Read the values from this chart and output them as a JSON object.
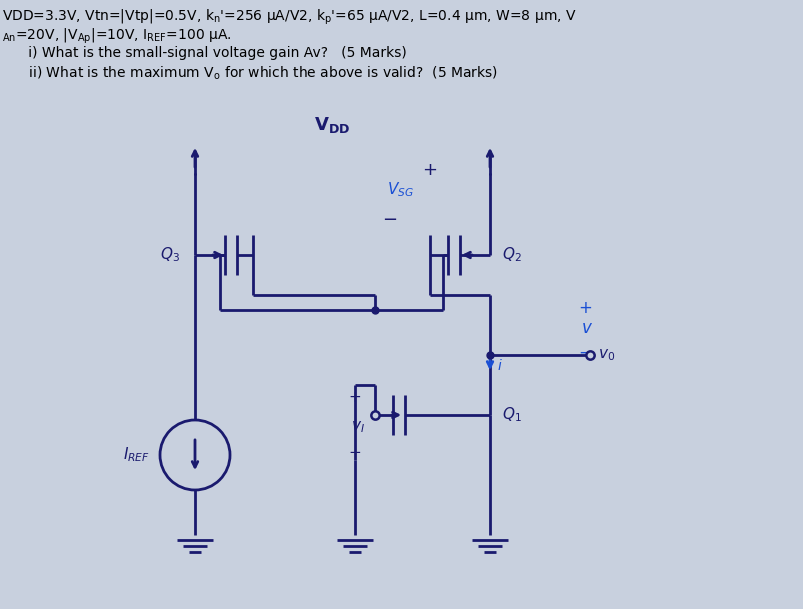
{
  "bg_color": "#c8d0de",
  "line_color": "#1a1a6e",
  "blue_label_color": "#1a4fd4",
  "header1": "VDD=3.3V, Vtn=|Vtp|=0.5V, k",
  "header1b": "n",
  "header1c": "'=256 μA/V2, k",
  "header1d": "p",
  "header1e": "'=65 μA/V2, L=0.4 μm, W=8 μm, V",
  "header2": "An=20V, |V Ap|=10V, I REF=100 μA.",
  "header3": "      i) What is the small-signal voltage gain Av?   (5 Marks)",
  "header4": "      ii) What is the maximum V o for which the above is valid?  (5 Marks)"
}
